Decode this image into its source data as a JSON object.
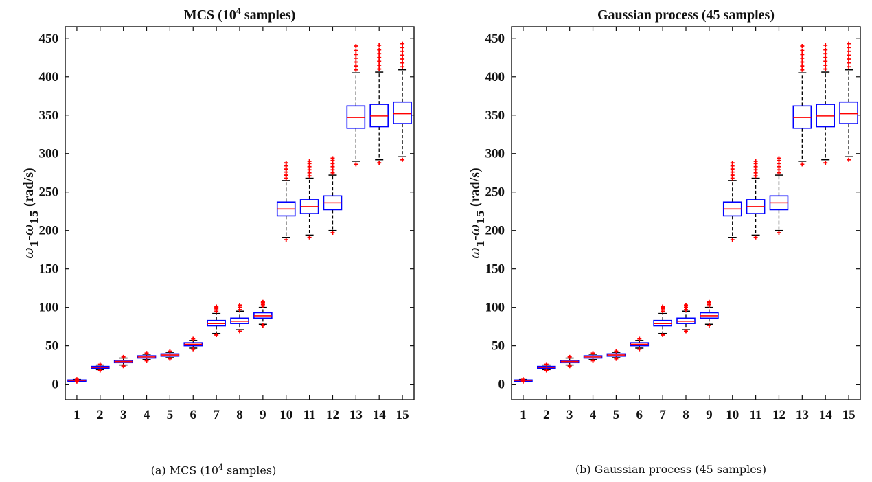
{
  "chart_data": [
    {
      "type": "box",
      "title": "MCS (10<sup>4</sup> samples)",
      "title_plain": "MCS (10",
      "title_sup": "4",
      "title_tail": " samples)",
      "ylabel_parts": [
        "ω",
        "1",
        "-ω",
        "15",
        " (rad/s)"
      ],
      "ylim": [
        -20,
        465
      ],
      "yticks": [
        0,
        50,
        100,
        150,
        200,
        250,
        300,
        350,
        400,
        450
      ],
      "categories": [
        "1",
        "2",
        "3",
        "4",
        "5",
        "6",
        "7",
        "8",
        "9",
        "10",
        "11",
        "12",
        "13",
        "14",
        "15"
      ],
      "boxes": [
        {
          "q1": 4.2,
          "med": 5,
          "q3": 5.6,
          "wlo": 3.8,
          "whi": 6.2,
          "out_lo": [
            3.5
          ],
          "out_hi": [
            6.6
          ]
        },
        {
          "q1": 20.8,
          "med": 22,
          "q3": 23.2,
          "wlo": 19,
          "whi": 25,
          "out_lo": [
            18
          ],
          "out_hi": [
            26
          ]
        },
        {
          "q1": 28,
          "med": 29.5,
          "q3": 31,
          "wlo": 25,
          "whi": 34,
          "out_lo": [
            23.5
          ],
          "out_hi": [
            35.5
          ]
        },
        {
          "q1": 34,
          "med": 35.5,
          "q3": 37,
          "wlo": 32,
          "whi": 39,
          "out_lo": [
            30.5
          ],
          "out_hi": [
            40.5
          ]
        },
        {
          "q1": 36.5,
          "med": 38,
          "q3": 39.5,
          "wlo": 34.5,
          "whi": 41.5,
          "out_lo": [
            33
          ],
          "out_hi": [
            43
          ]
        },
        {
          "q1": 50,
          "med": 52,
          "q3": 54,
          "wlo": 47,
          "whi": 57,
          "out_lo": [
            45.5
          ],
          "out_hi": [
            59
          ]
        },
        {
          "q1": 76,
          "med": 79,
          "q3": 83,
          "wlo": 66,
          "whi": 92,
          "out_lo": [
            64
          ],
          "out_hi": [
            95,
            98,
            100,
            101
          ]
        },
        {
          "q1": 79,
          "med": 82,
          "q3": 86,
          "wlo": 71,
          "whi": 95,
          "out_lo": [
            69
          ],
          "out_hi": [
            97,
            100,
            102,
            103
          ]
        },
        {
          "q1": 86,
          "med": 89,
          "q3": 93,
          "wlo": 78,
          "whi": 100,
          "out_lo": [
            76.5
          ],
          "out_hi": [
            102,
            104,
            106,
            107
          ]
        },
        {
          "q1": 219,
          "med": 228,
          "q3": 237,
          "wlo": 191,
          "whi": 265,
          "out_lo": [
            188
          ],
          "out_hi": [
            268,
            272,
            276,
            280,
            284,
            288
          ]
        },
        {
          "q1": 222,
          "med": 231,
          "q3": 240,
          "wlo": 194,
          "whi": 268,
          "out_lo": [
            191
          ],
          "out_hi": [
            271,
            275,
            279,
            283,
            287,
            290
          ]
        },
        {
          "q1": 227,
          "med": 236,
          "q3": 245,
          "wlo": 200,
          "whi": 272,
          "out_lo": [
            197
          ],
          "out_hi": [
            275,
            279,
            283,
            287,
            291,
            294
          ]
        },
        {
          "q1": 333,
          "med": 347,
          "q3": 362,
          "wlo": 290,
          "whi": 405,
          "out_lo": [
            286
          ],
          "out_hi": [
            409,
            414,
            419,
            424,
            429,
            434,
            440
          ]
        },
        {
          "q1": 335,
          "med": 349,
          "q3": 364,
          "wlo": 292,
          "whi": 406,
          "out_lo": [
            288
          ],
          "out_hi": [
            410,
            415,
            420,
            425,
            430,
            435,
            441
          ]
        },
        {
          "q1": 339,
          "med": 352,
          "q3": 367,
          "wlo": 296,
          "whi": 409,
          "out_lo": [
            292
          ],
          "out_hi": [
            413,
            418,
            423,
            428,
            433,
            438,
            443
          ]
        }
      ],
      "box_color": "#0000ff",
      "median_color": "#ff0000",
      "outlier_color": "#ff0000",
      "whisker_color": "#000000"
    },
    {
      "type": "box",
      "title_plain": "Gaussian process (45 samples)",
      "title_sup": "",
      "title_tail": "",
      "ylabel_parts": [
        "ω",
        "1",
        "-ω",
        "15",
        " (rad/s)"
      ],
      "ylim": [
        -20,
        465
      ],
      "yticks": [
        0,
        50,
        100,
        150,
        200,
        250,
        300,
        350,
        400,
        450
      ],
      "categories": [
        "1",
        "2",
        "3",
        "4",
        "5",
        "6",
        "7",
        "8",
        "9",
        "10",
        "11",
        "12",
        "13",
        "14",
        "15"
      ],
      "boxes": [
        {
          "q1": 4.2,
          "med": 5,
          "q3": 5.6,
          "wlo": 3.8,
          "whi": 6.2,
          "out_lo": [
            3.5
          ],
          "out_hi": [
            6.6
          ]
        },
        {
          "q1": 20.8,
          "med": 22,
          "q3": 23.2,
          "wlo": 19,
          "whi": 25,
          "out_lo": [
            18
          ],
          "out_hi": [
            26
          ]
        },
        {
          "q1": 28,
          "med": 29.5,
          "q3": 31,
          "wlo": 25,
          "whi": 34,
          "out_lo": [
            23.5
          ],
          "out_hi": [
            35.5
          ]
        },
        {
          "q1": 34,
          "med": 35.5,
          "q3": 37,
          "wlo": 32,
          "whi": 39,
          "out_lo": [
            30.5
          ],
          "out_hi": [
            40.5
          ]
        },
        {
          "q1": 36.5,
          "med": 38,
          "q3": 39.5,
          "wlo": 34.5,
          "whi": 41.5,
          "out_lo": [
            33
          ],
          "out_hi": [
            43
          ]
        },
        {
          "q1": 50,
          "med": 52,
          "q3": 54,
          "wlo": 47,
          "whi": 57,
          "out_lo": [
            45.5
          ],
          "out_hi": [
            59
          ]
        },
        {
          "q1": 76,
          "med": 79,
          "q3": 83,
          "wlo": 66,
          "whi": 92,
          "out_lo": [
            64
          ],
          "out_hi": [
            95,
            98,
            100,
            101
          ]
        },
        {
          "q1": 79,
          "med": 82,
          "q3": 86,
          "wlo": 71,
          "whi": 95,
          "out_lo": [
            69
          ],
          "out_hi": [
            97,
            100,
            102,
            103
          ]
        },
        {
          "q1": 86,
          "med": 89,
          "q3": 93,
          "wlo": 78,
          "whi": 100,
          "out_lo": [
            76.5
          ],
          "out_hi": [
            102,
            104,
            106,
            107
          ]
        },
        {
          "q1": 219,
          "med": 228,
          "q3": 237,
          "wlo": 191,
          "whi": 265,
          "out_lo": [
            188
          ],
          "out_hi": [
            268,
            272,
            276,
            280,
            284,
            288
          ]
        },
        {
          "q1": 222,
          "med": 231,
          "q3": 240,
          "wlo": 194,
          "whi": 268,
          "out_lo": [
            191
          ],
          "out_hi": [
            271,
            275,
            279,
            283,
            287,
            290
          ]
        },
        {
          "q1": 227,
          "med": 236,
          "q3": 245,
          "wlo": 200,
          "whi": 272,
          "out_lo": [
            197
          ],
          "out_hi": [
            275,
            279,
            283,
            287,
            291,
            294
          ]
        },
        {
          "q1": 333,
          "med": 347,
          "q3": 362,
          "wlo": 290,
          "whi": 405,
          "out_lo": [
            286
          ],
          "out_hi": [
            409,
            414,
            419,
            424,
            429,
            434,
            440
          ]
        },
        {
          "q1": 335,
          "med": 349,
          "q3": 364,
          "wlo": 292,
          "whi": 406,
          "out_lo": [
            288
          ],
          "out_hi": [
            410,
            415,
            420,
            425,
            430,
            435,
            441
          ]
        },
        {
          "q1": 339,
          "med": 352,
          "q3": 367,
          "wlo": 296,
          "whi": 409,
          "out_lo": [
            292
          ],
          "out_hi": [
            413,
            418,
            423,
            428,
            433,
            438,
            443
          ]
        }
      ],
      "box_color": "#0000ff",
      "median_color": "#ff0000",
      "outlier_color": "#ff0000",
      "whisker_color": "#000000"
    }
  ],
  "captions": {
    "a_pre": "(a) MCS (10",
    "a_sup": "4",
    "a_post": " samples)",
    "b": "(b) Gaussian process (45 samples)"
  }
}
